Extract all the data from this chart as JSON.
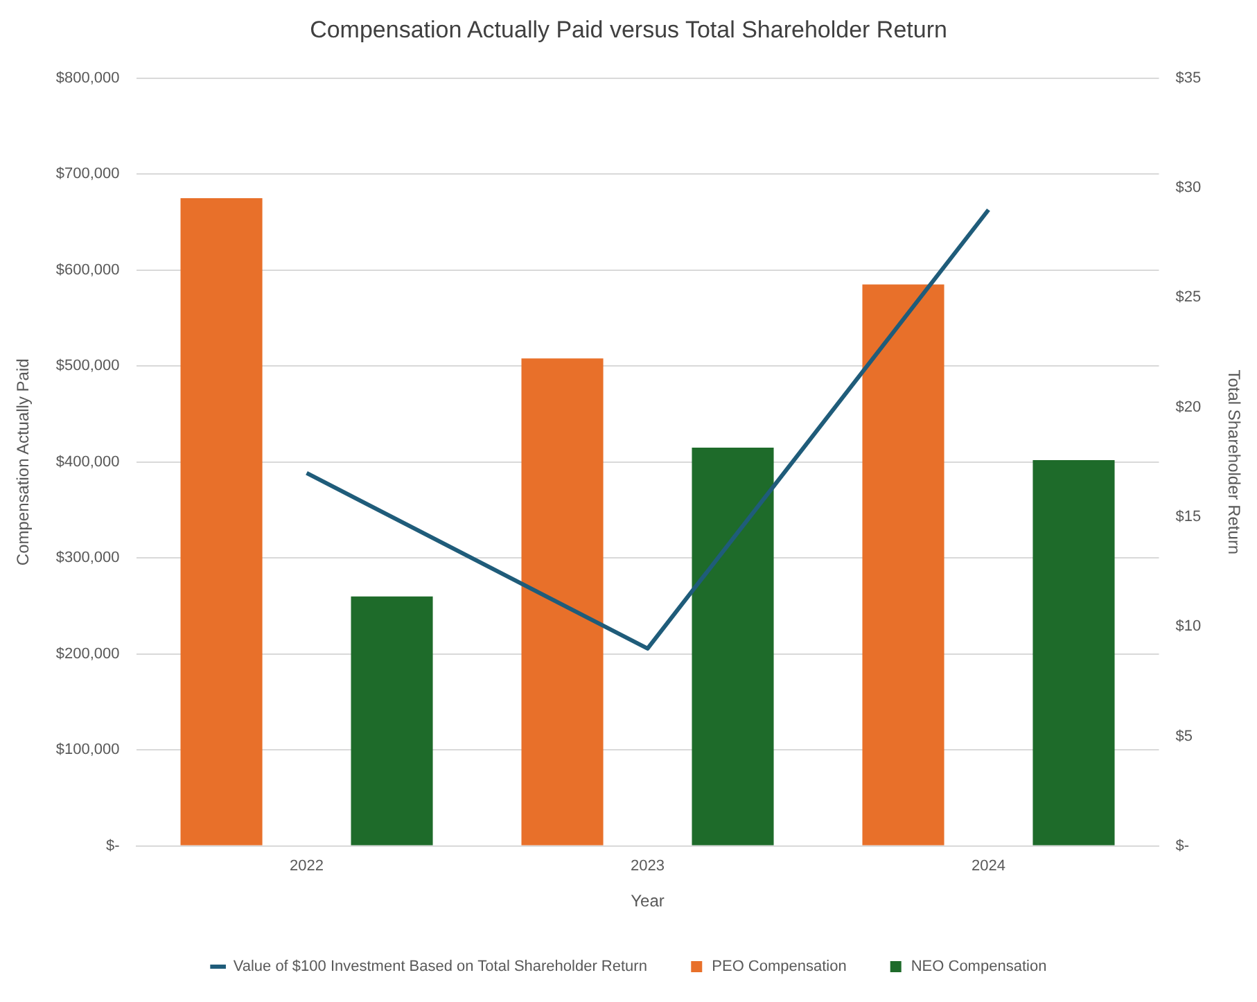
{
  "chart_data": {
    "type": "bar",
    "title": "Compensation Actually Paid versus Total Shareholder Return",
    "xlabel": "Year",
    "ylabel": "Compensation Actually Paid",
    "y2label": "Total Shareholder Return",
    "categories": [
      "2022",
      "2023",
      "2024"
    ],
    "series": [
      {
        "name": "PEO Compensation",
        "color": "#e8702a",
        "values": [
          675000,
          508000,
          585000
        ]
      },
      {
        "name": "NEO Compensation",
        "color": "#1e6b2a",
        "values": [
          260000,
          415000,
          402000
        ]
      },
      {
        "name": "Value of $100 Investment Based on Total Shareholder Return",
        "type": "line",
        "axis": "y2",
        "color": "#1f5c7a",
        "values": [
          17,
          9,
          29
        ]
      }
    ],
    "ylim": [
      0,
      800000
    ],
    "yticks": [
      {
        "value": 0,
        "label": "$-"
      },
      {
        "value": 100000,
        "label": "$100,000"
      },
      {
        "value": 200000,
        "label": "$200,000"
      },
      {
        "value": 300000,
        "label": "$300,000"
      },
      {
        "value": 400000,
        "label": "$400,000"
      },
      {
        "value": 500000,
        "label": "$500,000"
      },
      {
        "value": 600000,
        "label": "$600,000"
      },
      {
        "value": 700000,
        "label": "$700,000"
      },
      {
        "value": 800000,
        "label": "$800,000"
      }
    ],
    "y2lim": [
      0,
      35
    ],
    "y2ticks": [
      {
        "value": 0,
        "label": "$-"
      },
      {
        "value": 5,
        "label": "$5"
      },
      {
        "value": 10,
        "label": "$10"
      },
      {
        "value": 15,
        "label": "$15"
      },
      {
        "value": 20,
        "label": "$20"
      },
      {
        "value": 25,
        "label": "$25"
      },
      {
        "value": 30,
        "label": "$30"
      },
      {
        "value": 35,
        "label": "$35"
      }
    ],
    "grid": "y",
    "legend": "bottom"
  }
}
